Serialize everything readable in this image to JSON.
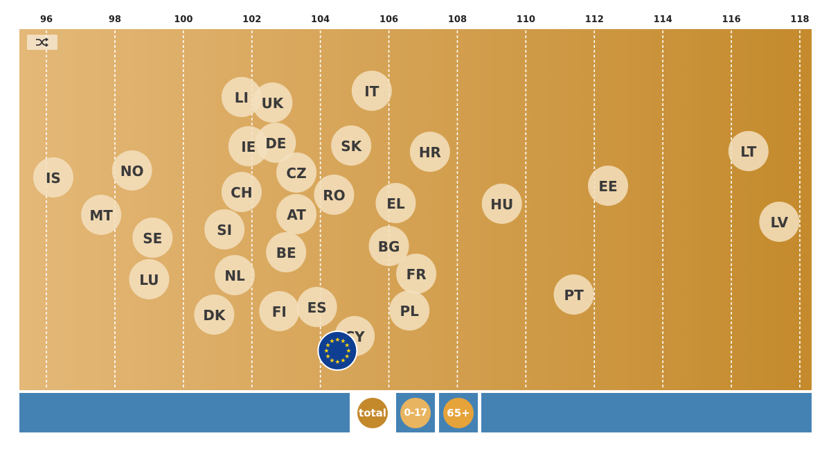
{
  "chart_data": {
    "type": "scatter",
    "x_ticks": [
      96,
      98,
      100,
      102,
      104,
      106,
      108,
      110,
      112,
      114,
      116,
      118
    ],
    "xlim": [
      96,
      118
    ],
    "grid": true,
    "points": [
      {
        "label": "IS",
        "x": 96.2
      },
      {
        "label": "NO",
        "x": 98.5
      },
      {
        "label": "MT",
        "x": 97.6
      },
      {
        "label": "SE",
        "x": 99.1
      },
      {
        "label": "LU",
        "x": 99.0
      },
      {
        "label": "LI",
        "x": 101.7
      },
      {
        "label": "UK",
        "x": 102.6
      },
      {
        "label": "IE",
        "x": 101.9
      },
      {
        "label": "DE",
        "x": 102.7
      },
      {
        "label": "CZ",
        "x": 103.3
      },
      {
        "label": "CH",
        "x": 101.7
      },
      {
        "label": "AT",
        "x": 103.3
      },
      {
        "label": "SI",
        "x": 101.2
      },
      {
        "label": "BE",
        "x": 103.0
      },
      {
        "label": "NL",
        "x": 101.5
      },
      {
        "label": "DK",
        "x": 100.9
      },
      {
        "label": "FI",
        "x": 102.8
      },
      {
        "label": "ES",
        "x": 103.9
      },
      {
        "label": "CY",
        "x": 105.0
      },
      {
        "label": "IT",
        "x": 105.5
      },
      {
        "label": "SK",
        "x": 104.9
      },
      {
        "label": "RO",
        "x": 104.4
      },
      {
        "label": "EL",
        "x": 106.2
      },
      {
        "label": "BG",
        "x": 106.0
      },
      {
        "label": "FR",
        "x": 106.8
      },
      {
        "label": "PL",
        "x": 106.6
      },
      {
        "label": "HR",
        "x": 107.2
      },
      {
        "label": "HU",
        "x": 109.3
      },
      {
        "label": "PT",
        "x": 111.4
      },
      {
        "label": "EE",
        "x": 112.4
      },
      {
        "label": "LT",
        "x": 116.5
      },
      {
        "label": "LV",
        "x": 117.4
      }
    ],
    "eu_marker": {
      "label": "EU",
      "x": 104.5
    }
  },
  "icons": {
    "shuffle": "shuffle-icon",
    "eu_flag": "eu-flag-icon"
  },
  "colors": {
    "background_left": "#e4b878",
    "background_right": "#c48a2c",
    "bubble": "#f3dfbe",
    "bubble_text": "#3a3a3a",
    "eu_blue": "#0e3f93",
    "eu_star": "#f7d117",
    "bar_blue": "#4582b4",
    "total_circle": "#c3892b",
    "child_circle": "#e8b45f",
    "senior_circle": "#e5a33a"
  },
  "controls": {
    "total_label": "total",
    "child_label": "0-17",
    "senior_label": "65+"
  }
}
